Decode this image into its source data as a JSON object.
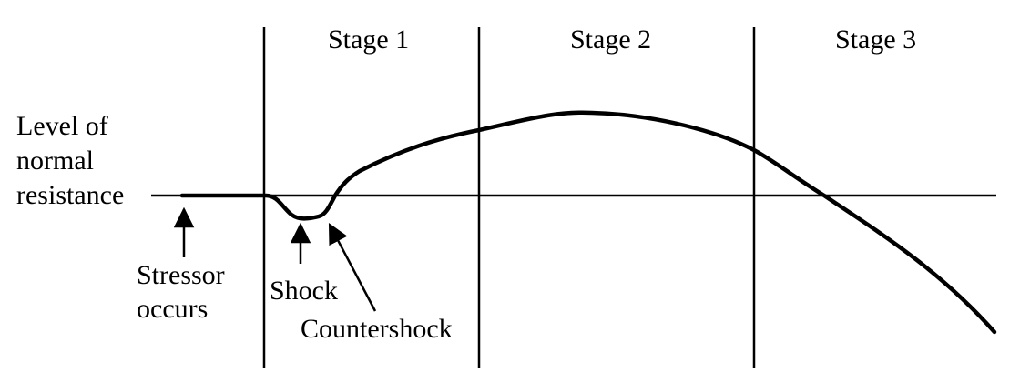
{
  "stages": [
    "Stage 1",
    "Stage 2",
    "Stage 3"
  ],
  "y_axis_label": {
    "line1": "Level of",
    "line2": "normal",
    "line3": "resistance"
  },
  "annotations": {
    "stressor_line1": "Stressor",
    "stressor_line2": "occurs",
    "shock": "Shock",
    "countershock": "Countershock"
  }
}
